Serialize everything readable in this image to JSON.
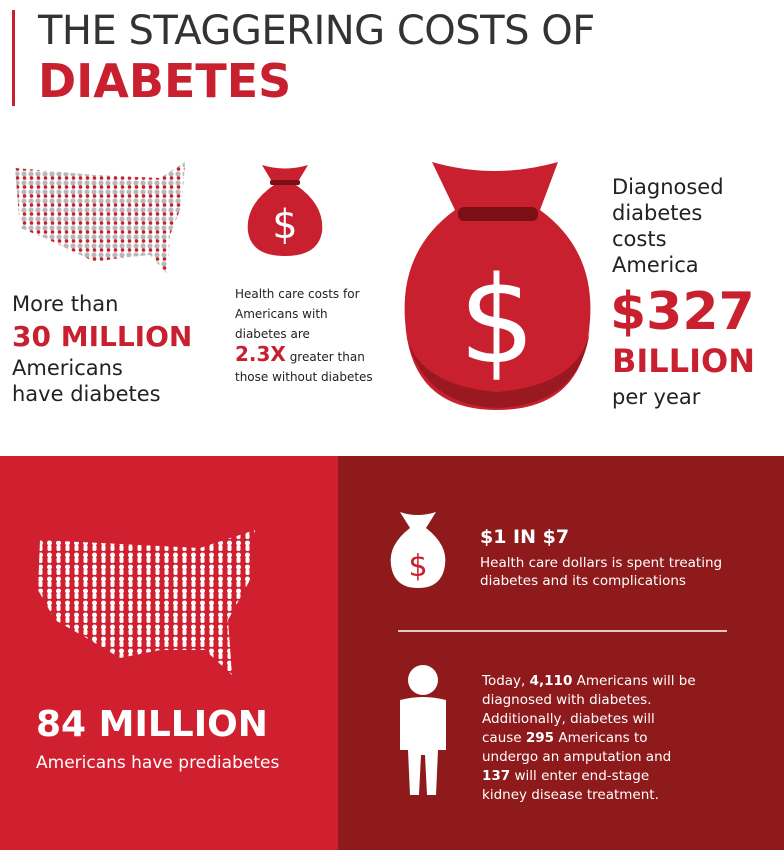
{
  "header": {
    "title_line1": "THE STAGGERING COSTS OF",
    "title_line2": "DIABETES"
  },
  "icon_symbol": "$",
  "stat_diagnosed": {
    "lead": "More than",
    "figure": "30 MILLION",
    "line1": "Americans",
    "line2": "have diabetes"
  },
  "stat_cost_ratio": {
    "text_before": "Health care costs for Americans with diabetes are",
    "figure": "2.3X",
    "text_after": "greater than those without diabetes"
  },
  "stat_total_cost": {
    "lead": "Diagnosed diabetes costs America",
    "figure": "$327",
    "unit": "BILLION",
    "tail": "per year"
  },
  "stat_prediabetes": {
    "figure": "84 MILLION",
    "text": "Americans have prediabetes"
  },
  "stat_share": {
    "figure": "$1 IN $7",
    "text": "Health care dollars is spent treating diabetes and its complications"
  },
  "stat_daily": {
    "parts": [
      "Today,",
      "4,110",
      "Americans will be diagnosed with diabetes. Additionally, diabetes will cause",
      "295",
      "Americans to undergo an amputation and",
      "137",
      "will enter end-stage kidney disease treatment."
    ]
  }
}
